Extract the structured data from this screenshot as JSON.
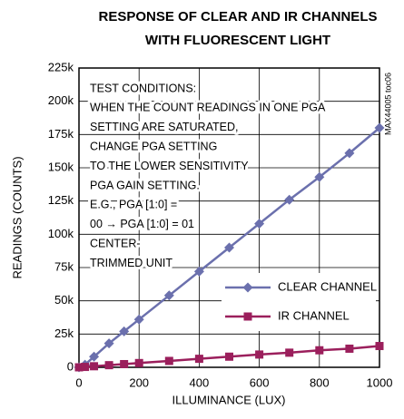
{
  "chart_data": {
    "type": "line",
    "title": [
      "RESPONSE OF CLEAR AND IR CHANNELS",
      "WITH FLUORESCENT LIGHT"
    ],
    "xlabel": "ILLUMINANCE (LUX)",
    "ylabel": "READINGS (COUNTS)",
    "x": [
      0,
      20,
      50,
      100,
      150,
      200,
      300,
      400,
      500,
      600,
      700,
      800,
      900,
      1000
    ],
    "series": [
      {
        "name": "CLEAR CHANNEL",
        "color": "#6b70ad",
        "marker": "diamond",
        "values": [
          0,
          2000,
          8000,
          18000,
          27000,
          36000,
          54000,
          72000,
          90000,
          108000,
          126000,
          143000,
          161000,
          180000
        ]
      },
      {
        "name": "IR CHANNEL",
        "color": "#9b1f5c",
        "marker": "square",
        "values": [
          0,
          300,
          800,
          1600,
          2400,
          3200,
          4800,
          6400,
          8000,
          9600,
          11000,
          12800,
          14000,
          16000
        ]
      }
    ],
    "xlim": [
      0,
      1000
    ],
    "xticks": [
      0,
      200,
      400,
      600,
      800,
      1000
    ],
    "ylim": [
      0,
      225000
    ],
    "yticks": [
      0,
      {
        "value": 25000,
        "label": "25k"
      },
      {
        "value": 50000,
        "label": "50k"
      },
      {
        "value": 75000,
        "label": "75k"
      },
      {
        "value": 100000,
        "label": "100k"
      },
      {
        "value": 125000,
        "label": "125k"
      },
      {
        "value": 150000,
        "label": "150k"
      },
      {
        "value": 175000,
        "label": "175k"
      },
      {
        "value": 200000,
        "label": "200k"
      },
      {
        "value": 225000,
        "label": "225k"
      }
    ],
    "grid": true,
    "legend": "lower right",
    "annotation": [
      "TEST CONDITIONS:",
      "WHEN THE COUNT READINGS IN ONE PGA",
      "SETTING ARE SATURATED,",
      "CHANGE PGA SETTING",
      "TO THE LOWER SENSITIVITY",
      "PGA GAIN SETTING.",
      "E.G., PGA [1:0] =",
      "00 → PGA [1:0] = 01",
      "CENTER-",
      "TRIMMED UNIT"
    ],
    "note": "MAX44005 toc06"
  }
}
